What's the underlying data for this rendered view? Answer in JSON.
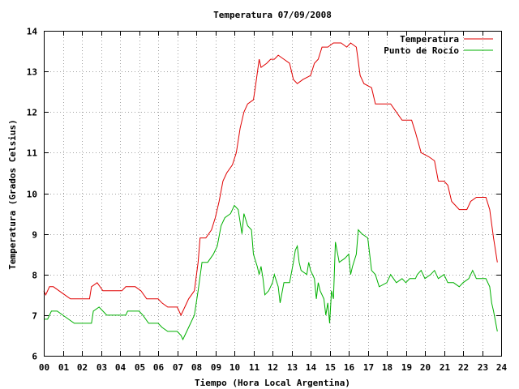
{
  "chart_data": {
    "type": "line",
    "title": "Temperatura 07/09/2008",
    "xlabel": "Tiempo (Hora Local Argentina)",
    "ylabel": "Temperatura (Grados Celsius)",
    "xlim": [
      0,
      24
    ],
    "ylim": [
      6,
      14
    ],
    "x_tick_labels": [
      "00",
      "01",
      "02",
      "03",
      "04",
      "05",
      "06",
      "07",
      "08",
      "09",
      "10",
      "11",
      "12",
      "13",
      "14",
      "15",
      "16",
      "17",
      "18",
      "19",
      "20",
      "21",
      "22",
      "23",
      "24"
    ],
    "y_tick_labels": [
      "6",
      "7",
      "8",
      "9",
      "10",
      "11",
      "12",
      "13",
      "14"
    ],
    "grid": true,
    "legend_position": "top-right",
    "series": [
      {
        "name": "Temperatura",
        "color": "#e00000",
        "points": [
          [
            0.0,
            7.6
          ],
          [
            0.1,
            7.5
          ],
          [
            0.3,
            7.7
          ],
          [
            0.5,
            7.7
          ],
          [
            0.8,
            7.6
          ],
          [
            1.1,
            7.5
          ],
          [
            1.4,
            7.4
          ],
          [
            1.8,
            7.4
          ],
          [
            2.4,
            7.4
          ],
          [
            2.5,
            7.7
          ],
          [
            2.8,
            7.8
          ],
          [
            3.1,
            7.6
          ],
          [
            3.5,
            7.6
          ],
          [
            4.1,
            7.6
          ],
          [
            4.3,
            7.7
          ],
          [
            4.8,
            7.7
          ],
          [
            5.1,
            7.6
          ],
          [
            5.4,
            7.4
          ],
          [
            6.0,
            7.4
          ],
          [
            6.2,
            7.3
          ],
          [
            6.5,
            7.2
          ],
          [
            7.0,
            7.2
          ],
          [
            7.2,
            7.0
          ],
          [
            7.4,
            7.2
          ],
          [
            7.6,
            7.4
          ],
          [
            7.9,
            7.6
          ],
          [
            8.1,
            8.3
          ],
          [
            8.2,
            8.9
          ],
          [
            8.5,
            8.9
          ],
          [
            8.8,
            9.1
          ],
          [
            9.0,
            9.4
          ],
          [
            9.2,
            9.8
          ],
          [
            9.4,
            10.3
          ],
          [
            9.6,
            10.5
          ],
          [
            9.9,
            10.7
          ],
          [
            10.1,
            11.0
          ],
          [
            10.3,
            11.6
          ],
          [
            10.5,
            12.0
          ],
          [
            10.7,
            12.2
          ],
          [
            11.0,
            12.3
          ],
          [
            11.1,
            12.6
          ],
          [
            11.3,
            13.3
          ],
          [
            11.4,
            13.1
          ],
          [
            11.7,
            13.2
          ],
          [
            11.9,
            13.3
          ],
          [
            12.1,
            13.3
          ],
          [
            12.3,
            13.4
          ],
          [
            12.6,
            13.3
          ],
          [
            12.9,
            13.2
          ],
          [
            13.1,
            12.8
          ],
          [
            13.3,
            12.7
          ],
          [
            13.6,
            12.8
          ],
          [
            14.0,
            12.9
          ],
          [
            14.2,
            13.2
          ],
          [
            14.4,
            13.3
          ],
          [
            14.6,
            13.6
          ],
          [
            14.9,
            13.6
          ],
          [
            15.2,
            13.7
          ],
          [
            15.6,
            13.7
          ],
          [
            15.9,
            13.6
          ],
          [
            16.1,
            13.7
          ],
          [
            16.4,
            13.6
          ],
          [
            16.6,
            12.9
          ],
          [
            16.8,
            12.7
          ],
          [
            17.2,
            12.6
          ],
          [
            17.4,
            12.2
          ],
          [
            17.8,
            12.2
          ],
          [
            18.2,
            12.2
          ],
          [
            18.5,
            12.0
          ],
          [
            18.8,
            11.8
          ],
          [
            19.3,
            11.8
          ],
          [
            19.5,
            11.5
          ],
          [
            19.8,
            11.0
          ],
          [
            20.2,
            10.9
          ],
          [
            20.5,
            10.8
          ],
          [
            20.7,
            10.3
          ],
          [
            21.0,
            10.3
          ],
          [
            21.2,
            10.2
          ],
          [
            21.4,
            9.8
          ],
          [
            21.6,
            9.7
          ],
          [
            21.8,
            9.6
          ],
          [
            22.2,
            9.6
          ],
          [
            22.4,
            9.8
          ],
          [
            22.7,
            9.9
          ],
          [
            23.2,
            9.9
          ],
          [
            23.4,
            9.6
          ],
          [
            23.6,
            8.9
          ],
          [
            23.8,
            8.3
          ]
        ]
      },
      {
        "name": "Punto de Rocío",
        "color": "#00b000",
        "points": [
          [
            0.0,
            6.9
          ],
          [
            0.2,
            6.9
          ],
          [
            0.4,
            7.1
          ],
          [
            0.7,
            7.1
          ],
          [
            1.0,
            7.0
          ],
          [
            1.3,
            6.9
          ],
          [
            1.6,
            6.8
          ],
          [
            2.1,
            6.8
          ],
          [
            2.5,
            6.8
          ],
          [
            2.6,
            7.1
          ],
          [
            2.9,
            7.2
          ],
          [
            3.1,
            7.1
          ],
          [
            3.3,
            7.0
          ],
          [
            3.8,
            7.0
          ],
          [
            4.3,
            7.0
          ],
          [
            4.4,
            7.1
          ],
          [
            5.0,
            7.1
          ],
          [
            5.2,
            7.0
          ],
          [
            5.5,
            6.8
          ],
          [
            6.0,
            6.8
          ],
          [
            6.2,
            6.7
          ],
          [
            6.5,
            6.6
          ],
          [
            7.0,
            6.6
          ],
          [
            7.2,
            6.5
          ],
          [
            7.3,
            6.4
          ],
          [
            7.5,
            6.6
          ],
          [
            7.7,
            6.8
          ],
          [
            7.9,
            7.0
          ],
          [
            8.1,
            7.6
          ],
          [
            8.3,
            8.3
          ],
          [
            8.6,
            8.3
          ],
          [
            8.9,
            8.5
          ],
          [
            9.1,
            8.7
          ],
          [
            9.3,
            9.2
          ],
          [
            9.5,
            9.4
          ],
          [
            9.8,
            9.5
          ],
          [
            10.0,
            9.7
          ],
          [
            10.2,
            9.6
          ],
          [
            10.4,
            9.0
          ],
          [
            10.5,
            9.5
          ],
          [
            10.7,
            9.2
          ],
          [
            10.9,
            9.1
          ],
          [
            11.0,
            8.5
          ],
          [
            11.2,
            8.2
          ],
          [
            11.3,
            8.0
          ],
          [
            11.4,
            8.2
          ],
          [
            11.5,
            7.9
          ],
          [
            11.6,
            7.5
          ],
          [
            11.8,
            7.6
          ],
          [
            12.0,
            7.8
          ],
          [
            12.1,
            8.0
          ],
          [
            12.3,
            7.7
          ],
          [
            12.4,
            7.3
          ],
          [
            12.6,
            7.8
          ],
          [
            12.9,
            7.8
          ],
          [
            13.1,
            8.3
          ],
          [
            13.2,
            8.6
          ],
          [
            13.3,
            8.7
          ],
          [
            13.4,
            8.3
          ],
          [
            13.5,
            8.1
          ],
          [
            13.8,
            8.0
          ],
          [
            13.9,
            8.3
          ],
          [
            14.0,
            8.1
          ],
          [
            14.2,
            7.9
          ],
          [
            14.3,
            7.4
          ],
          [
            14.4,
            7.8
          ],
          [
            14.5,
            7.6
          ],
          [
            14.7,
            7.4
          ],
          [
            14.8,
            7.0
          ],
          [
            14.9,
            7.3
          ],
          [
            15.0,
            6.8
          ],
          [
            15.1,
            7.6
          ],
          [
            15.2,
            7.4
          ],
          [
            15.3,
            8.8
          ],
          [
            15.5,
            8.3
          ],
          [
            15.8,
            8.4
          ],
          [
            16.0,
            8.5
          ],
          [
            16.1,
            8.0
          ],
          [
            16.2,
            8.2
          ],
          [
            16.4,
            8.5
          ],
          [
            16.5,
            9.1
          ],
          [
            16.7,
            9.0
          ],
          [
            17.0,
            8.9
          ],
          [
            17.2,
            8.1
          ],
          [
            17.4,
            8.0
          ],
          [
            17.6,
            7.7
          ],
          [
            18.0,
            7.8
          ],
          [
            18.2,
            8.0
          ],
          [
            18.5,
            7.8
          ],
          [
            18.8,
            7.9
          ],
          [
            19.0,
            7.8
          ],
          [
            19.2,
            7.9
          ],
          [
            19.5,
            7.9
          ],
          [
            19.6,
            8.0
          ],
          [
            19.8,
            8.1
          ],
          [
            20.0,
            7.9
          ],
          [
            20.3,
            8.0
          ],
          [
            20.5,
            8.1
          ],
          [
            20.7,
            7.9
          ],
          [
            21.0,
            8.0
          ],
          [
            21.2,
            7.8
          ],
          [
            21.5,
            7.8
          ],
          [
            21.8,
            7.7
          ],
          [
            22.0,
            7.8
          ],
          [
            22.3,
            7.9
          ],
          [
            22.5,
            8.1
          ],
          [
            22.7,
            7.9
          ],
          [
            23.2,
            7.9
          ],
          [
            23.4,
            7.7
          ],
          [
            23.5,
            7.3
          ],
          [
            23.6,
            7.1
          ],
          [
            23.8,
            6.6
          ]
        ]
      }
    ]
  }
}
